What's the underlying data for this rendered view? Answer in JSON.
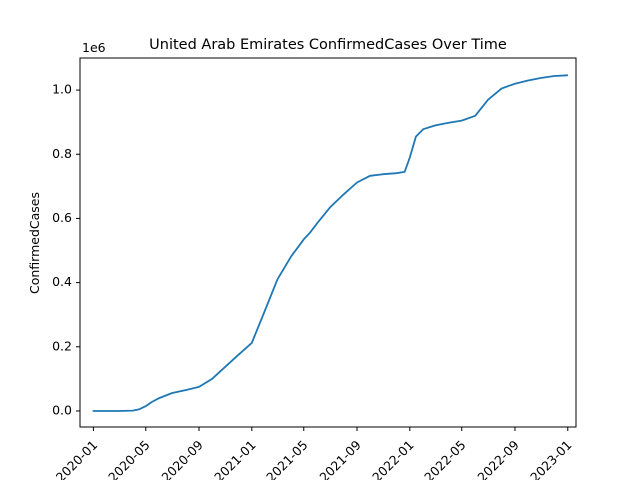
{
  "chart_data": {
    "type": "line",
    "title": "United Arab Emirates  ConfirmedCases Over Time",
    "xlabel": "",
    "ylabel": "ConfirmedCases",
    "y_offset_label": "1e6",
    "xlim": [
      "2019-12-01",
      "2023-01-20"
    ],
    "ylim": [
      -0.05,
      1.1
    ],
    "x_ticks": [
      "2020-01",
      "2020-05",
      "2020-09",
      "2021-01",
      "2021-05",
      "2021-09",
      "2022-01",
      "2022-05",
      "2022-09",
      "2023-01"
    ],
    "y_ticks": [
      "0.0",
      "0.2",
      "0.4",
      "0.6",
      "0.8",
      "1.0"
    ],
    "grid": false,
    "line_color": "#1f77b4",
    "series": [
      {
        "name": "",
        "x": [
          "2020-01-01",
          "2020-02-01",
          "2020-03-01",
          "2020-04-01",
          "2020-04-15",
          "2020-05-01",
          "2020-05-15",
          "2020-06-01",
          "2020-07-01",
          "2020-08-01",
          "2020-09-01",
          "2020-10-01",
          "2020-11-01",
          "2020-12-01",
          "2021-01-01",
          "2021-02-01",
          "2021-03-01",
          "2021-04-01",
          "2021-05-01",
          "2021-05-15",
          "2021-06-01",
          "2021-07-01",
          "2021-08-01",
          "2021-09-01",
          "2021-10-01",
          "2021-11-01",
          "2021-12-01",
          "2021-12-20",
          "2022-01-01",
          "2022-01-15",
          "2022-02-01",
          "2022-03-01",
          "2022-04-01",
          "2022-05-01",
          "2022-06-01",
          "2022-07-01",
          "2022-08-01",
          "2022-09-01",
          "2022-10-01",
          "2022-11-01",
          "2022-12-01",
          "2022-12-31"
        ],
        "values": [
          0,
          0,
          0,
          0.001,
          0.005,
          0.015,
          0.028,
          0.04,
          0.056,
          0.065,
          0.075,
          0.1,
          0.138,
          0.175,
          0.212,
          0.315,
          0.41,
          0.48,
          0.535,
          0.555,
          0.585,
          0.635,
          0.675,
          0.712,
          0.733,
          0.738,
          0.741,
          0.745,
          0.79,
          0.855,
          0.878,
          0.89,
          0.898,
          0.905,
          0.92,
          0.97,
          1.005,
          1.02,
          1.03,
          1.038,
          1.044,
          1.046
        ]
      }
    ]
  }
}
